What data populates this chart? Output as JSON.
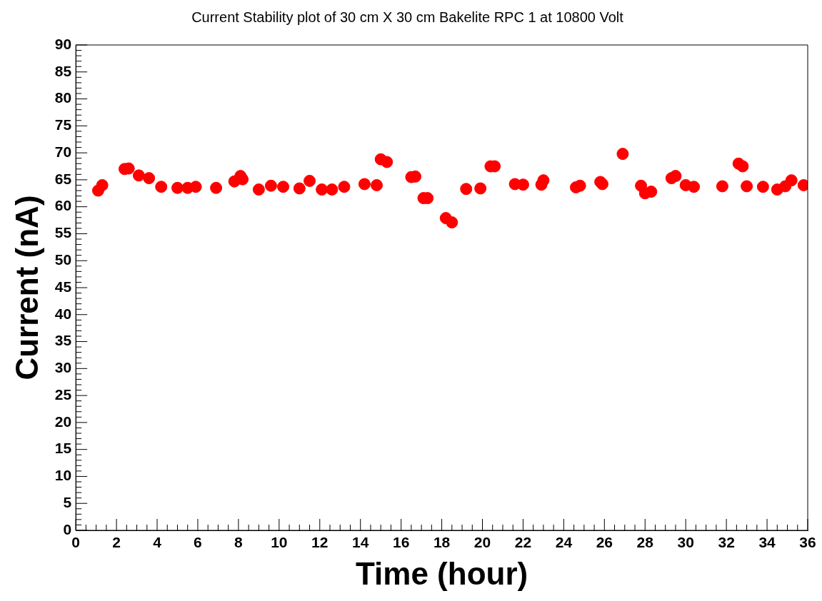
{
  "chart_data": {
    "type": "scatter",
    "title": "Current Stability plot of 30 cm X 30 cm Bakelite RPC 1 at 10800 Volt",
    "xlabel": "Time (hour)",
    "ylabel": "Current (nA)",
    "x": [
      1.1,
      1.3,
      2.4,
      2.6,
      3.1,
      3.6,
      4.2,
      5.0,
      5.5,
      5.9,
      6.9,
      7.8,
      8.1,
      8.2,
      9.0,
      9.6,
      10.2,
      11.0,
      11.5,
      12.1,
      12.6,
      13.2,
      14.2,
      14.8,
      15.0,
      15.3,
      16.5,
      16.7,
      17.1,
      17.3,
      18.2,
      18.5,
      19.2,
      19.9,
      20.4,
      20.6,
      21.6,
      22.0,
      22.9,
      23.0,
      24.6,
      24.8,
      25.8,
      25.9,
      26.9,
      27.8,
      28.0,
      28.3,
      29.3,
      29.5,
      30.0,
      30.4,
      31.8,
      32.6,
      32.8,
      33.0,
      33.8,
      34.5,
      34.9,
      35.2,
      35.8
    ],
    "values": [
      63,
      64,
      67,
      67.1,
      65.8,
      65.3,
      63.7,
      63.5,
      63.5,
      63.7,
      63.5,
      64.7,
      65.7,
      65.1,
      63.2,
      63.9,
      63.7,
      63.4,
      64.8,
      63.2,
      63.2,
      63.7,
      64.2,
      64.0,
      68.8,
      68.3,
      65.5,
      65.6,
      61.6,
      61.6,
      57.9,
      57.1,
      63.3,
      63.4,
      67.5,
      67.5,
      64.2,
      64.1,
      64.1,
      64.9,
      63.6,
      63.9,
      64.6,
      64.2,
      69.8,
      63.9,
      62.5,
      62.8,
      65.3,
      65.7,
      64.0,
      63.7,
      63.8,
      68.0,
      67.5,
      63.8,
      63.7,
      63.2,
      63.8,
      64.9,
      64.0
    ],
    "color": "#ff0000",
    "marker": "circle",
    "grid": false,
    "legend": false,
    "xlim": [
      0,
      36
    ],
    "xticks": [
      0,
      2,
      4,
      6,
      8,
      10,
      12,
      14,
      16,
      18,
      20,
      22,
      24,
      26,
      28,
      30,
      32,
      34,
      36
    ],
    "ylim": [
      0,
      90
    ],
    "yticks": [
      0,
      5,
      10,
      15,
      20,
      25,
      30,
      35,
      40,
      45,
      50,
      55,
      60,
      65,
      70,
      75,
      80,
      85,
      90
    ]
  }
}
